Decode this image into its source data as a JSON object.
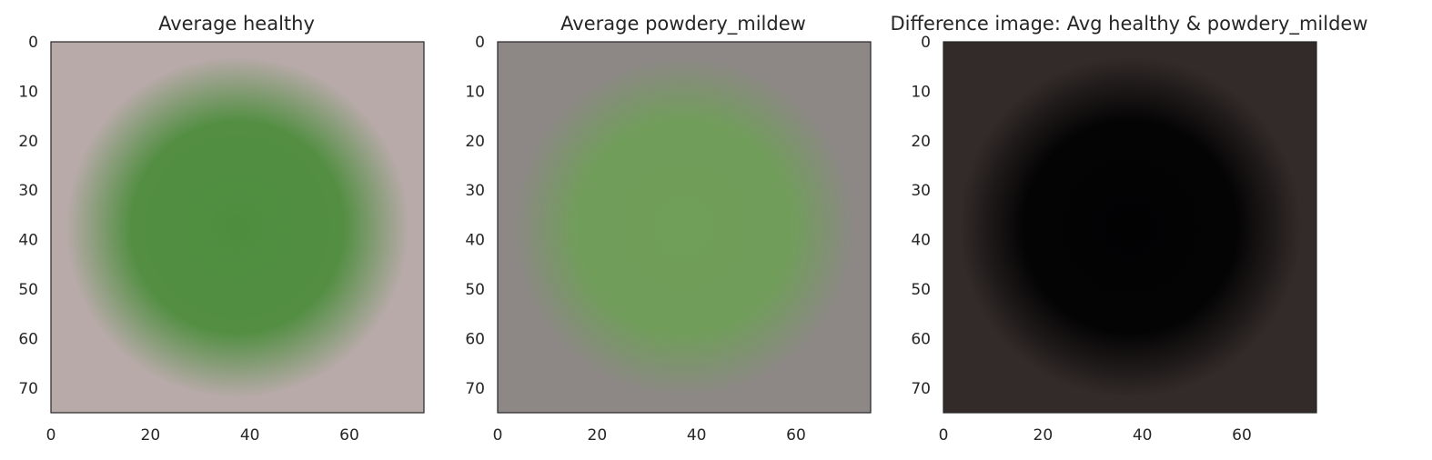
{
  "chart_data": [
    {
      "type": "image",
      "title": "Average healthy",
      "xlim": [
        0,
        75
      ],
      "ylim": [
        75,
        0
      ],
      "xticks": [
        "0",
        "20",
        "40",
        "60"
      ],
      "yticks": [
        "0",
        "10",
        "20",
        "30",
        "40",
        "50",
        "60",
        "70"
      ],
      "colors": {
        "background": "#b8aaa9",
        "leaf": "#4e8d3e"
      }
    },
    {
      "type": "image",
      "title": "Average powdery_mildew",
      "xlim": [
        0,
        75
      ],
      "ylim": [
        75,
        0
      ],
      "xticks": [
        "0",
        "20",
        "40",
        "60"
      ],
      "yticks": [
        "0",
        "10",
        "20",
        "30",
        "40",
        "50",
        "60",
        "70"
      ],
      "colors": {
        "background": "#8d8786",
        "leaf": "#6f9f58"
      }
    },
    {
      "type": "image",
      "title": "Difference image: Avg healthy & powdery_mildew",
      "xlim": [
        0,
        75
      ],
      "ylim": [
        75,
        0
      ],
      "xticks": [
        "0",
        "20",
        "40",
        "60"
      ],
      "yticks": [
        "0",
        "10",
        "20",
        "30",
        "40",
        "50",
        "60",
        "70"
      ],
      "colors": {
        "background": "#332b29",
        "leaf": "#020203"
      }
    }
  ]
}
